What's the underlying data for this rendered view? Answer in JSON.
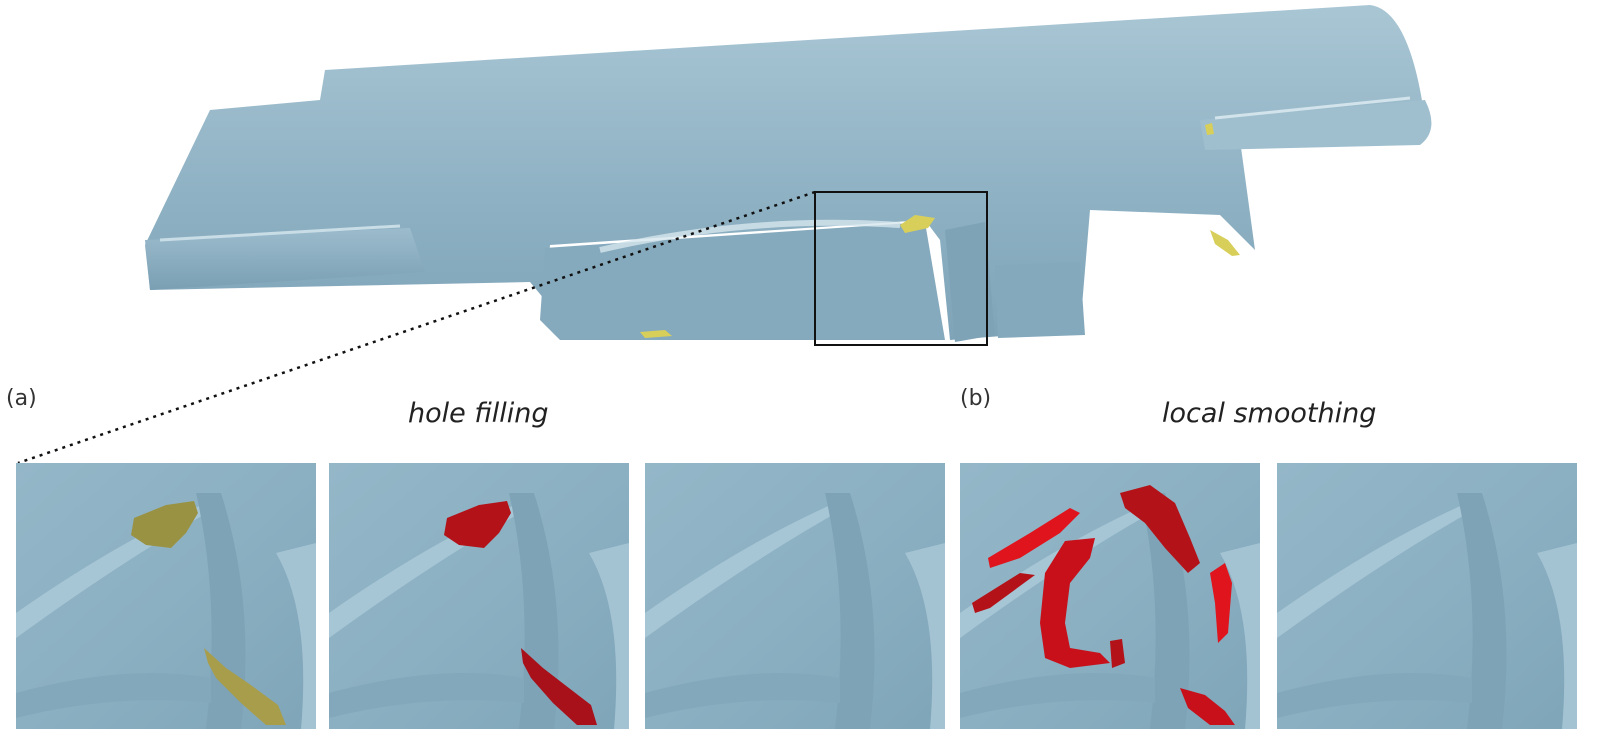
{
  "figure": {
    "label_a": "(a)",
    "label_b": "(b)",
    "caption_a": "hole filling",
    "caption_b": "local smoothing"
  },
  "colors": {
    "mesh": "#8fb2c4",
    "mesh_light": "#b9d3df",
    "mesh_dark": "#6f94a8",
    "hole_boundary": "#b8a94a",
    "filled_patch": "#b31218",
    "smoothed_region": "#e0141c",
    "zoom_box": "#111111"
  }
}
